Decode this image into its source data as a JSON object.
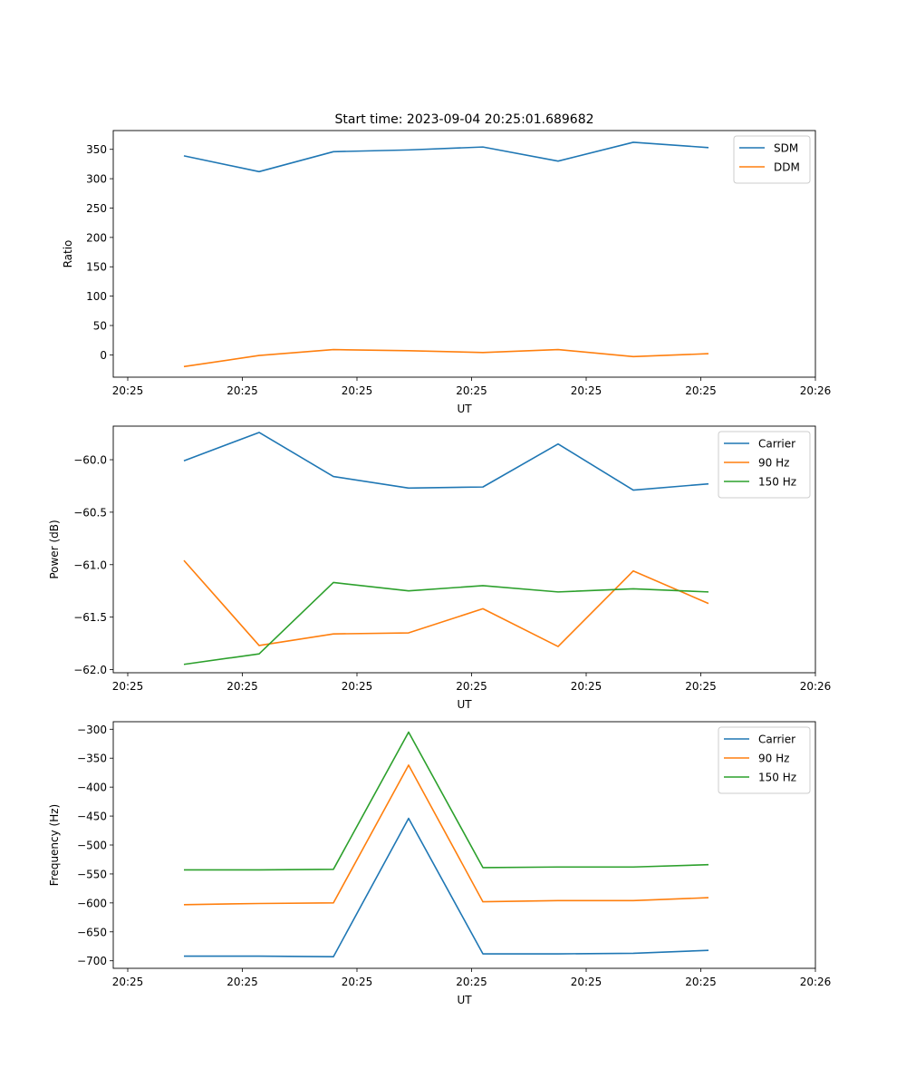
{
  "chart_data": [
    {
      "type": "line",
      "title": "Start time: 2023-09-04 20:25:01.689682",
      "xlabel": "UT",
      "ylabel": "Ratio",
      "x_tick_labels": [
        "20:25",
        "20:25",
        "20:25",
        "20:25",
        "20:25",
        "20:25",
        "20:26"
      ],
      "y_ticks": [
        0,
        50,
        100,
        150,
        200,
        250,
        300,
        350
      ],
      "ylim": [
        -38,
        382
      ],
      "legend_position": "top-right",
      "series": [
        {
          "name": "SDM",
          "color": "#1f77b4",
          "values": [
            339,
            312,
            346,
            349,
            354,
            330,
            362,
            353
          ]
        },
        {
          "name": "DDM",
          "color": "#ff7f0e",
          "values": [
            -20,
            -1,
            9,
            7,
            4,
            9,
            -3,
            2
          ]
        }
      ]
    },
    {
      "type": "line",
      "title": "",
      "xlabel": "UT",
      "ylabel": "Power (dB)",
      "x_tick_labels": [
        "20:25",
        "20:25",
        "20:25",
        "20:25",
        "20:25",
        "20:25",
        "20:26"
      ],
      "y_ticks": [
        -60.0,
        -60.5,
        -61.0,
        -61.5,
        -62.0
      ],
      "y_tick_labels": [
        "−60.0",
        "−60.5",
        "−61.0",
        "−61.5",
        "−62.0"
      ],
      "ylim": [
        -62.03,
        -59.68
      ],
      "legend_position": "top-right",
      "series": [
        {
          "name": "Carrier",
          "color": "#1f77b4",
          "values": [
            -60.01,
            -59.74,
            -60.16,
            -60.27,
            -60.26,
            -59.85,
            -60.29,
            -60.23
          ]
        },
        {
          "name": "90 Hz",
          "color": "#ff7f0e",
          "values": [
            -60.96,
            -61.77,
            -61.66,
            -61.65,
            -61.42,
            -61.78,
            -61.06,
            -61.37
          ]
        },
        {
          "name": "150 Hz",
          "color": "#2ca02c",
          "values": [
            -61.95,
            -61.85,
            -61.17,
            -61.25,
            -61.2,
            -61.26,
            -61.23,
            -61.26
          ]
        }
      ]
    },
    {
      "type": "line",
      "title": "",
      "xlabel": "UT",
      "ylabel": "Frequency (Hz)",
      "x_tick_labels": [
        "20:25",
        "20:25",
        "20:25",
        "20:25",
        "20:25",
        "20:25",
        "20:26"
      ],
      "y_ticks": [
        -300,
        -350,
        -400,
        -450,
        -500,
        -550,
        -600,
        -650,
        -700
      ],
      "y_tick_labels": [
        "−300",
        "−350",
        "−400",
        "−450",
        "−500",
        "−550",
        "−600",
        "−650",
        "−700"
      ],
      "ylim": [
        -713,
        -287
      ],
      "legend_position": "top-right",
      "series": [
        {
          "name": "Carrier",
          "color": "#1f77b4",
          "values": [
            -692,
            -692,
            -693,
            -454,
            -688,
            -688,
            -687,
            -682
          ]
        },
        {
          "name": "90 Hz",
          "color": "#ff7f0e",
          "values": [
            -603,
            -601,
            -600,
            -362,
            -598,
            -596,
            -596,
            -591
          ]
        },
        {
          "name": "150 Hz",
          "color": "#2ca02c",
          "values": [
            -543,
            -543,
            -542,
            -305,
            -539,
            -538,
            -538,
            -534
          ]
        }
      ]
    }
  ]
}
